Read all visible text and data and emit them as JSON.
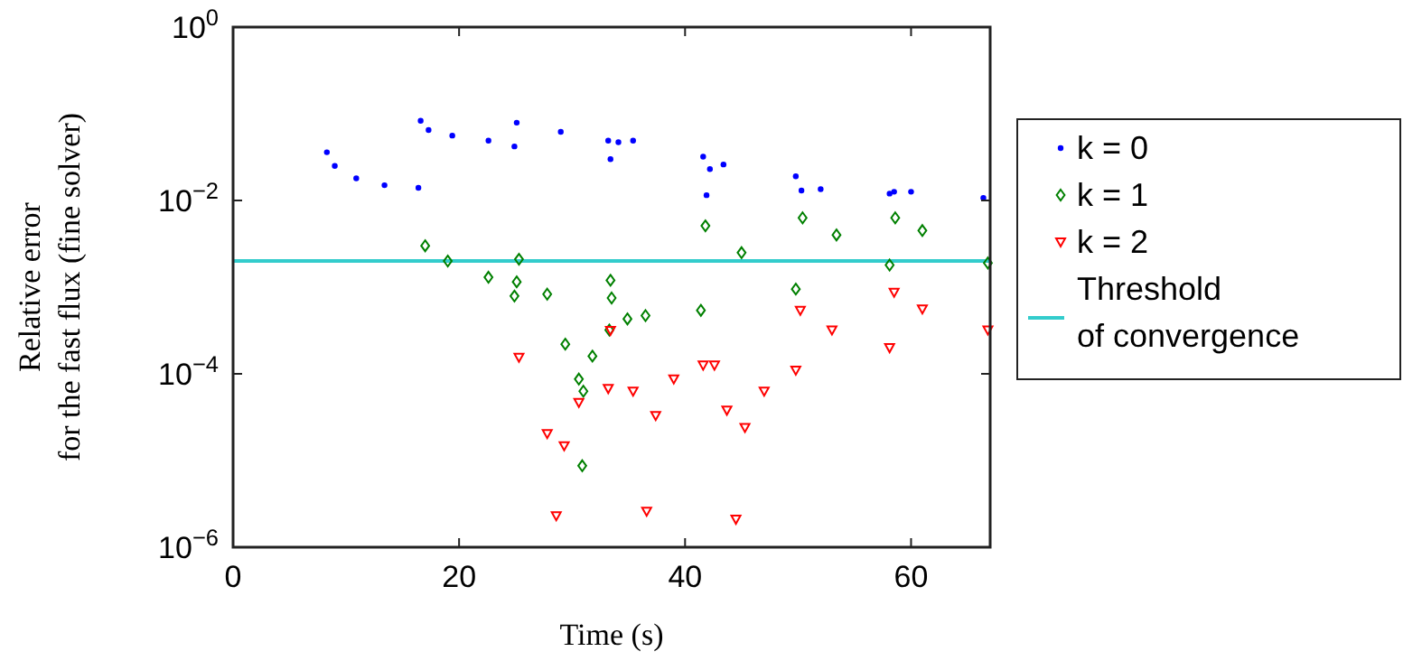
{
  "chart_data": {
    "type": "scatter",
    "xlabel": "Time (s)",
    "ylabel": "Relative error\nfor the fast flux (fine solver)",
    "log": "y",
    "xlim": [
      0,
      67
    ],
    "xticks": [
      0,
      20,
      40,
      60
    ],
    "ylim": [
      1e-06,
      1
    ],
    "yticks": [
      {
        "value": 1e-06,
        "label": "10$^{−6}$"
      },
      {
        "value": 0.0001,
        "label": "10$^{−4}$"
      },
      {
        "value": 0.01,
        "label": "10$^{−2}$"
      },
      {
        "value": 1,
        "label": "10$^{0}$"
      }
    ],
    "grid": false,
    "legend": "right",
    "series": [
      {
        "name": "k = 0",
        "color": "#0000ff",
        "marker": "circle",
        "x": [
          8.3,
          9.0,
          10.9,
          13.4,
          16.4,
          16.6,
          17.3,
          19.4,
          22.6,
          24.9,
          25.1,
          29,
          33.2,
          33.4,
          34.1,
          35.4,
          41.6,
          41.9,
          42.2,
          43.4,
          49.8,
          50.3,
          52,
          58.1,
          58.5,
          60,
          66.4
        ],
        "values": [
          0.036,
          0.025,
          0.018,
          0.015,
          0.014,
          0.083,
          0.065,
          0.056,
          0.049,
          0.042,
          0.079,
          0.062,
          0.049,
          0.03,
          0.047,
          0.049,
          0.032,
          0.0115,
          0.023,
          0.026,
          0.019,
          0.013,
          0.0135,
          0.012,
          0.0126,
          0.0126,
          0.0107
        ]
      },
      {
        "name": "k = 1",
        "color": "#008000",
        "marker": "diamond",
        "x": [
          17.0,
          19,
          22.6,
          24.9,
          25.1,
          25.3,
          27.8,
          29.4,
          30.6,
          31.0,
          30.9,
          31.8,
          33.3,
          33.4,
          33.5,
          34.9,
          36.5,
          41.4,
          41.8,
          45,
          49.8,
          50.4,
          53.4,
          58.1,
          58.6,
          61,
          66.8
        ],
        "values": [
          0.003,
          0.002,
          0.0013,
          0.00079,
          0.00115,
          0.0021,
          0.00083,
          0.00022,
          8.7e-05,
          6.3e-05,
          8.7e-06,
          0.00016,
          0.00032,
          0.0012,
          0.00075,
          0.00043,
          0.00047,
          0.00054,
          0.0051,
          0.0025,
          0.00095,
          0.0063,
          0.004,
          0.0018,
          0.0063,
          0.0045,
          0.0019
        ]
      },
      {
        "name": "k = 2",
        "color": "#ff0000",
        "marker": "triangle",
        "x": [
          25.3,
          27.8,
          28.6,
          29.3,
          30.6,
          33.2,
          33.4,
          35.4,
          36.6,
          37.4,
          39.0,
          41.6,
          42.6,
          43.7,
          44.5,
          45.3,
          47,
          49.8,
          50.2,
          53,
          58.1,
          58.5,
          61,
          66.8
        ],
        "values": [
          0.000155,
          2.04e-05,
          2.3e-06,
          1.48e-05,
          4.68e-05,
          6.76e-05,
          0.000316,
          6.3e-05,
          2.6e-06,
          3.3e-05,
          8.7e-05,
          0.000126,
          0.000126,
          3.8e-05,
          2.1e-06,
          2.4e-05,
          6.3e-05,
          0.00011,
          0.00054,
          0.00032,
          0.0002,
          0.00087,
          0.00056,
          0.00032
        ]
      }
    ],
    "ref_lines": [
      {
        "axis": "y",
        "value": 0.002,
        "label": "Threshold\nof convergence",
        "color": "#33cccc"
      }
    ]
  }
}
